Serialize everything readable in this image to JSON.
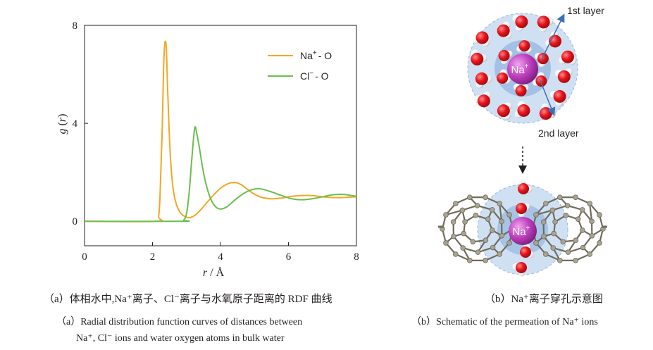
{
  "chart_data": {
    "type": "line",
    "title": "",
    "xlabel_var": "r",
    "xlabel_sep": " / ",
    "xlabel_unit": "Å",
    "ylabel_func": "g",
    "ylabel_var": "r",
    "xlim": [
      0,
      8
    ],
    "ylim": [
      -1,
      8
    ],
    "xticks": [
      0,
      2,
      4,
      6,
      8
    ],
    "yticks": [
      0,
      4,
      8
    ],
    "grid": false,
    "legend_position": "top-right",
    "series": [
      {
        "name_main": "Na",
        "name_sup": "+",
        "name_rest": "- O",
        "color": "#f5a623",
        "x": [
          0,
          2.1,
          2.18,
          2.22,
          2.28,
          2.34,
          2.4,
          2.45,
          2.52,
          2.6,
          2.7,
          2.82,
          2.95,
          3.1,
          3.3,
          3.5,
          3.75,
          4.0,
          4.25,
          4.45,
          4.6,
          4.75,
          4.95,
          5.2,
          5.5,
          5.8,
          6.1,
          6.4,
          6.7,
          7.0,
          7.3,
          7.6,
          8.0
        ],
        "y": [
          0,
          0,
          0.2,
          1.0,
          3.5,
          6.8,
          7.2,
          5.2,
          2.8,
          1.4,
          0.7,
          0.35,
          0.2,
          0.15,
          0.3,
          0.6,
          1.0,
          1.35,
          1.55,
          1.58,
          1.5,
          1.35,
          1.15,
          0.98,
          0.92,
          0.95,
          1.02,
          1.05,
          1.05,
          1.0,
          0.97,
          0.97,
          1.0
        ]
      },
      {
        "name_main": "Cl",
        "name_sup": "−",
        "name_rest": "- O",
        "color": "#6abf4b",
        "x": [
          0,
          2.85,
          2.92,
          3.0,
          3.08,
          3.16,
          3.24,
          3.3,
          3.38,
          3.46,
          3.56,
          3.7,
          3.85,
          4.0,
          4.2,
          4.45,
          4.7,
          4.95,
          5.2,
          5.5,
          5.8,
          6.1,
          6.4,
          6.7,
          7.0,
          7.3,
          7.6,
          8.0
        ],
        "y": [
          0,
          0,
          0.05,
          0.3,
          1.2,
          2.6,
          3.8,
          3.6,
          3.0,
          2.3,
          1.6,
          0.95,
          0.6,
          0.5,
          0.6,
          0.9,
          1.15,
          1.3,
          1.32,
          1.2,
          1.05,
          0.92,
          0.88,
          0.92,
          1.0,
          1.08,
          1.1,
          1.02
        ]
      }
    ]
  },
  "schematic": {
    "ion_label": "Na",
    "ion_sup": "+",
    "first_layer_label": "1st layer",
    "second_layer_label": "2nd layer",
    "colors": {
      "oxygen": "#e8141b",
      "hydrogen": "#ffffff",
      "sodium": "#c03fbf",
      "carbon": "#9e9a8a",
      "shell": "#b9d4ee",
      "arrow": "#3d6fb6"
    }
  },
  "captions": {
    "a_zh": "（a）体相水中,Na⁺离子、Cl⁻离子与水氧原子距离的 RDF 曲线",
    "a_en_line1": "（a）Radial distribution function curves of distances between",
    "a_en_line2": "Na⁺, Cl⁻ ions and water oxygen atoms in bulk water",
    "b_zh": "（b）Na⁺离子穿孔示意图",
    "b_en": "（b）Schematic of the permeation of Na⁺ ions"
  }
}
